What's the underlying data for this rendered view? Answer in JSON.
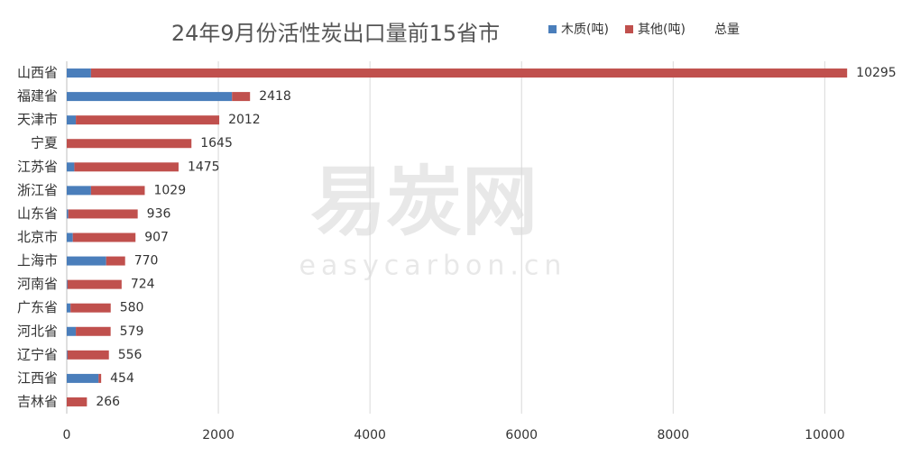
{
  "chart_data": {
    "type": "stacked_barh",
    "title": "24年9月份活性炭出口量前15省市",
    "categories": [
      "山西省",
      "福建省",
      "天津市",
      "宁夏",
      "江苏省",
      "浙江省",
      "山东省",
      "北京市",
      "上海市",
      "河南省",
      "广东省",
      "河北省",
      "辽宁省",
      "江西省",
      "吉林省"
    ],
    "series": [
      {
        "name": "木质(吨)",
        "color": "#4a7ebb",
        "values": [
          320,
          2180,
          120,
          0,
          100,
          320,
          20,
          80,
          520,
          10,
          50,
          120,
          10,
          420,
          0
        ]
      },
      {
        "name": "其他(吨)",
        "color": "#c0504d",
        "values": [
          9975,
          238,
          1892,
          1645,
          1375,
          709,
          916,
          827,
          250,
          714,
          530,
          459,
          546,
          34,
          266
        ]
      }
    ],
    "totals": {
      "name": "总量",
      "values": [
        10295,
        2418,
        2012,
        1645,
        1475,
        1029,
        936,
        907,
        770,
        724,
        580,
        579,
        556,
        454,
        266
      ]
    },
    "xlim": [
      0,
      10400
    ],
    "xticks": [
      0,
      2000,
      4000,
      6000,
      8000,
      10000
    ],
    "grid": true,
    "legend": "top",
    "watermark": {
      "name": "易炭网",
      "url": "easycarbon.cn"
    }
  }
}
